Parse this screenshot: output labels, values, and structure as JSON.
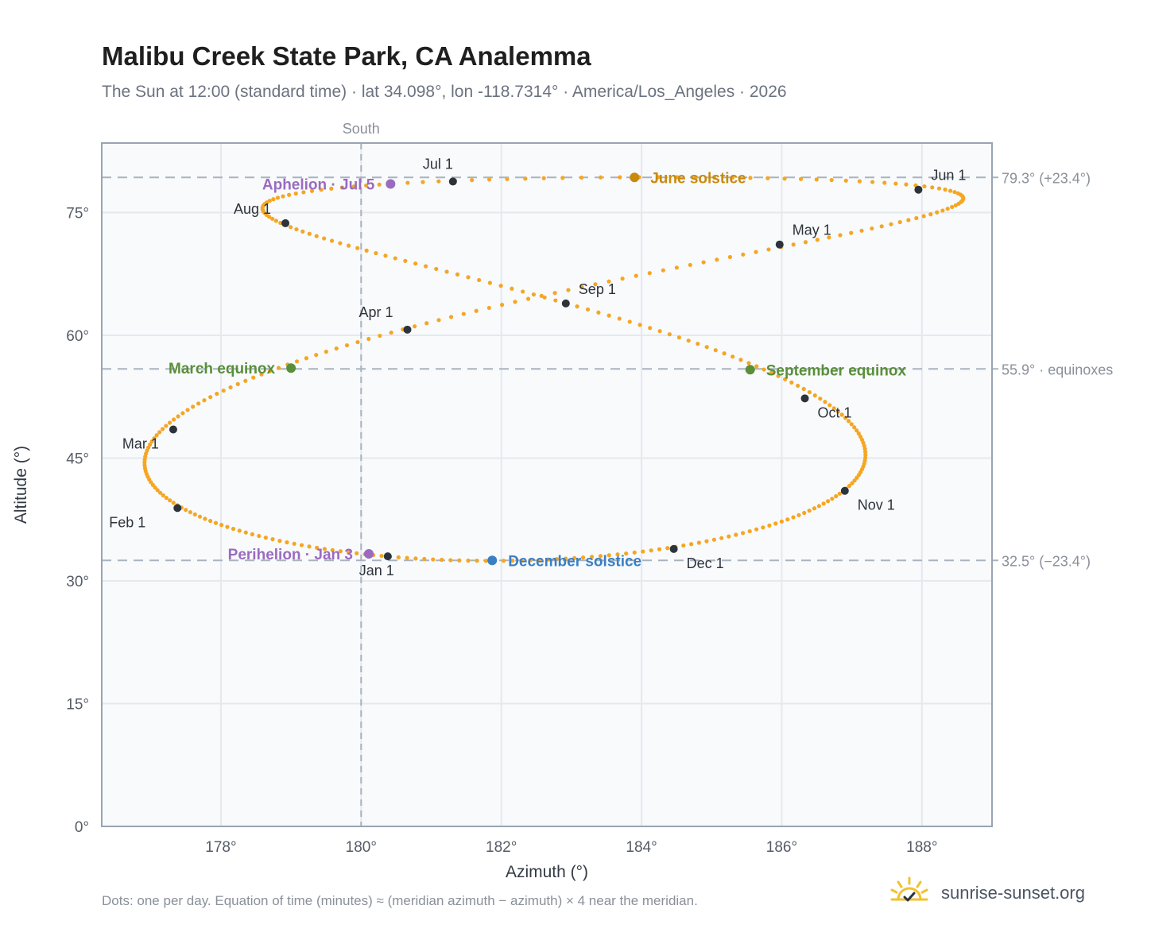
{
  "title": "Malibu Creek State Park, CA Analemma",
  "subtitle": "The Sun at 12:00 (standard time) · lat 34.098°, lon -118.7314° · America/Los_Angeles · 2026",
  "footnote": "Dots: one per day. Equation of time (minutes) ≈ (meridian azimuth − azimuth) × 4 near the meridian.",
  "brand": "sunrise-sunset.org",
  "colors": {
    "trail": "#f5a623",
    "month": "#2d333b",
    "equinox": "#5a8f3a",
    "june": "#c98a0c",
    "december": "#3a7fc4",
    "apsis": "#9b6bc0",
    "ref": "#a9b3bf",
    "grid": "#e5e9ee",
    "plot_bg": "#f8fafc",
    "frame": "#9aa4b2"
  },
  "chart_data": {
    "type": "scatter",
    "xlabel": "Azimuth (°)",
    "ylabel": "Altitude (°)",
    "xlim": [
      176.3,
      189.0
    ],
    "ylim": [
      0,
      83.5
    ],
    "xticks": [
      178,
      180,
      182,
      184,
      186,
      188
    ],
    "xtick_labels": [
      "178°",
      "180°",
      "182°",
      "184°",
      "186°",
      "188°"
    ],
    "yticks": [
      0,
      15,
      30,
      45,
      60,
      75
    ],
    "ytick_labels": [
      "0°",
      "15°",
      "30°",
      "45°",
      "60°",
      "75°"
    ],
    "grid": true,
    "south_azimuth": 180,
    "south_label": "South",
    "reference_lines": [
      {
        "altitude": 79.3,
        "label": "79.3° (+23.4°)"
      },
      {
        "altitude": 55.9,
        "label": "55.9° · equinoxes"
      },
      {
        "altitude": 32.5,
        "label": "32.5° (−23.4°)"
      }
    ],
    "year": 2026,
    "longitude": -118.7314,
    "months": [
      {
        "label": "Jan 1",
        "az": 180.38,
        "alt": 33.0
      },
      {
        "label": "Feb 1",
        "az": 177.38,
        "alt": 38.9
      },
      {
        "label": "Mar 1",
        "az": 177.32,
        "alt": 48.5
      },
      {
        "label": "Apr 1",
        "az": 180.66,
        "alt": 60.7
      },
      {
        "label": "May 1",
        "az": 185.97,
        "alt": 71.1
      },
      {
        "label": "Jun 1",
        "az": 187.95,
        "alt": 77.8
      },
      {
        "label": "Jul 1",
        "az": 181.31,
        "alt": 78.8
      },
      {
        "label": "Aug 1",
        "az": 178.92,
        "alt": 73.7
      },
      {
        "label": "Sep 1",
        "az": 182.92,
        "alt": 63.9
      },
      {
        "label": "Oct 1",
        "az": 186.33,
        "alt": 52.3
      },
      {
        "label": "Nov 1",
        "az": 186.9,
        "alt": 41.0
      },
      {
        "label": "Dec 1",
        "az": 184.46,
        "alt": 33.9
      }
    ],
    "events": [
      {
        "label": "March equinox",
        "az": 179.0,
        "alt": 56.0,
        "kind": "equinox",
        "side": "left"
      },
      {
        "label": "September equinox",
        "az": 185.55,
        "alt": 55.8,
        "kind": "equinox",
        "side": "right"
      },
      {
        "label": "June solstice",
        "az": 183.9,
        "alt": 79.3,
        "kind": "june",
        "side": "right"
      },
      {
        "label": "December solstice",
        "az": 181.87,
        "alt": 32.5,
        "kind": "december",
        "side": "right"
      },
      {
        "label": "Aphelion · Jul 5",
        "az": 180.42,
        "alt": 78.5,
        "kind": "apsis",
        "side": "left"
      },
      {
        "label": "Perihelion · Jan 3",
        "az": 180.11,
        "alt": 33.3,
        "kind": "apsis",
        "side": "left"
      }
    ]
  }
}
